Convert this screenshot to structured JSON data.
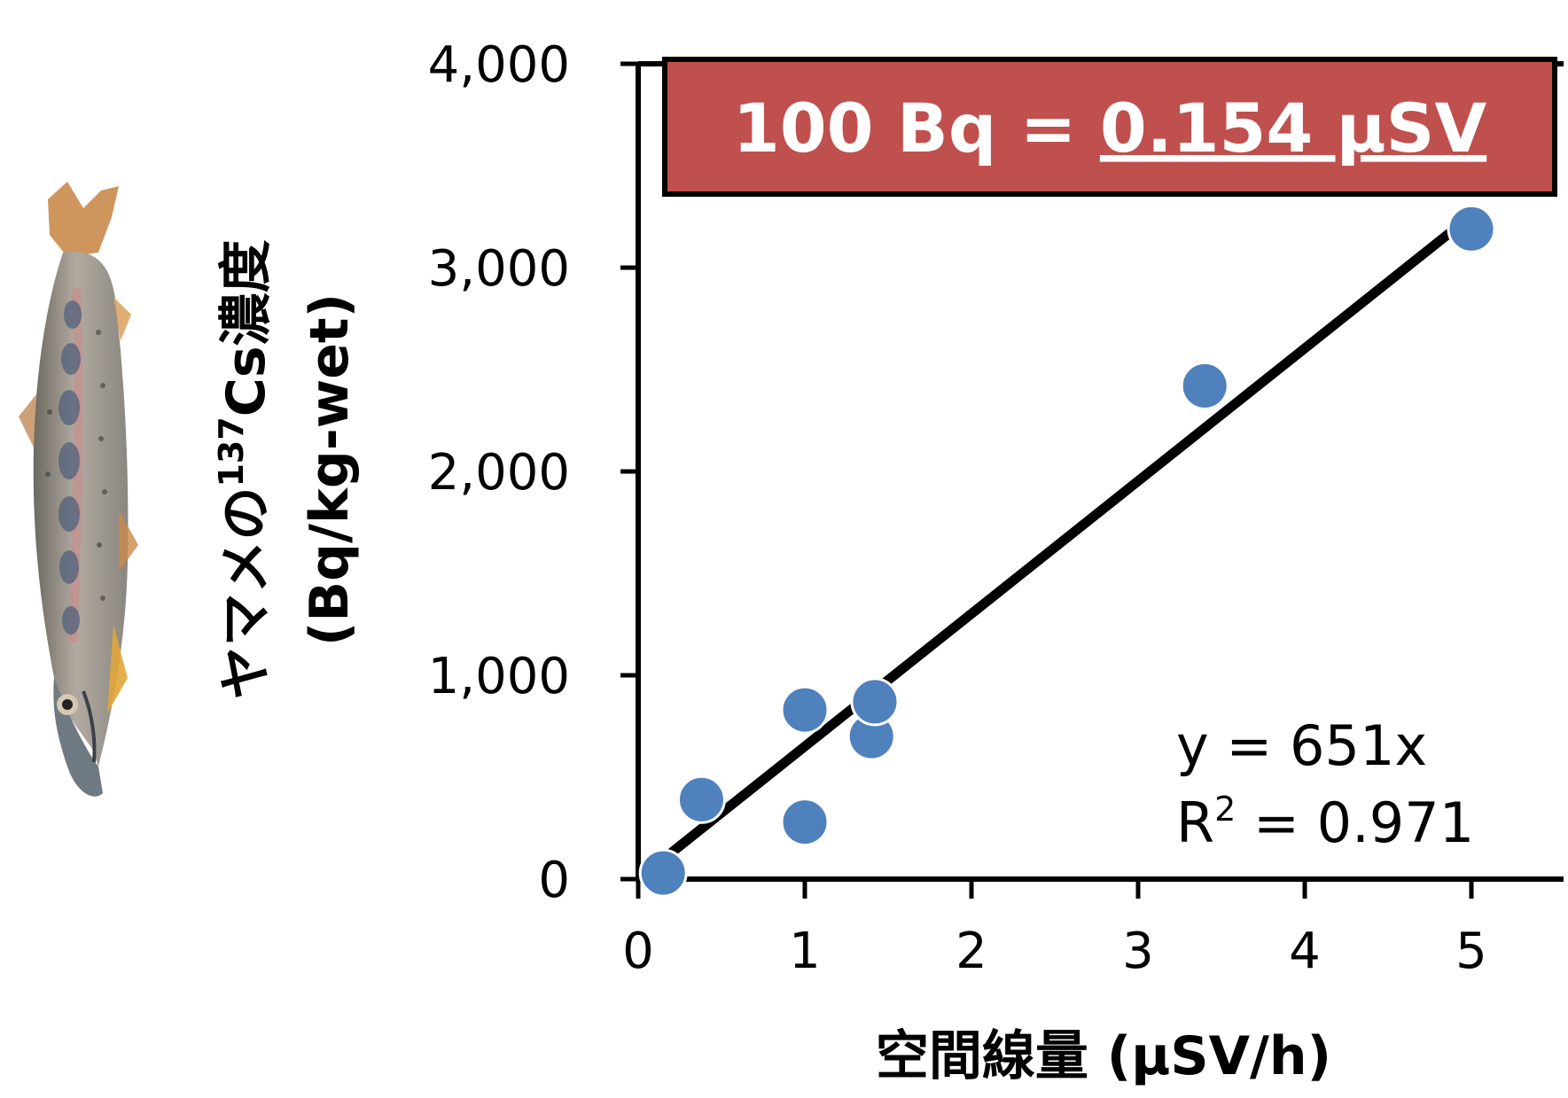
{
  "chart_data": {
    "type": "scatter",
    "xlabel": "空間線量 (μSV/h)",
    "ylabel_line1": "ヤマメの",
    "ylabel_sup": "137",
    "ylabel_line1_end": "Cs濃度",
    "ylabel_line2": "(Bq/kg-wet)",
    "xlim": [
      0,
      5.5
    ],
    "ylim": [
      0,
      4000
    ],
    "x_ticks": [
      0,
      1,
      2,
      3,
      4,
      5
    ],
    "y_ticks": [
      0,
      1000,
      2000,
      3000,
      4000
    ],
    "x_tick_labels": [
      "0",
      "1",
      "2",
      "3",
      "4",
      "5"
    ],
    "y_tick_labels": [
      "0",
      "1,000",
      "2,000",
      "3,000",
      "4,000"
    ],
    "points": [
      {
        "x": 0.15,
        "y": 30
      },
      {
        "x": 0.38,
        "y": 390
      },
      {
        "x": 1.0,
        "y": 830
      },
      {
        "x": 1.0,
        "y": 280
      },
      {
        "x": 1.4,
        "y": 700
      },
      {
        "x": 1.42,
        "y": 870
      },
      {
        "x": 3.4,
        "y": 2420
      },
      {
        "x": 5.0,
        "y": 3190
      }
    ],
    "fit": {
      "slope": 651,
      "x_range": [
        0.15,
        5.0
      ],
      "equation": "y = 651x",
      "r2_prefix": "R",
      "r2_sup": "2",
      "r2_value": " = 0.971"
    },
    "banner": {
      "text_prefix": "100 Bq = ",
      "text_underlined": "0.154 μSV"
    },
    "grid": false,
    "colors": {
      "point": "#4f81bd",
      "fit_line": "#000000",
      "banner_bg": "#c0504d",
      "banner_border": "#000000",
      "banner_text": "#ffffff"
    }
  },
  "illustration": {
    "icon": "fish-icon"
  }
}
